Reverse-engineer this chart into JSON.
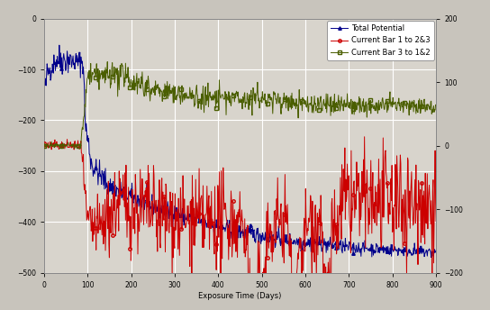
{
  "title": "",
  "xlabel": "Exposure Time (Days)",
  "xlim": [
    0,
    900
  ],
  "ylim_left": [
    -500,
    0
  ],
  "ylim_right": [
    -200,
    200
  ],
  "xticks": [
    0,
    100,
    200,
    300,
    400,
    500,
    600,
    700,
    800,
    900
  ],
  "yticks_left": [
    0,
    -100,
    -200,
    -300,
    -400,
    -500
  ],
  "yticks_right": [
    -200,
    -100,
    0,
    100,
    200
  ],
  "legend_entries": [
    "Total Potential",
    "Current Bar 1 to 2&3",
    "Current Bar 3 to 1&2"
  ],
  "line_colors": [
    "#00008B",
    "#cc0000",
    "#4a5e00"
  ],
  "line_markers": [
    "^",
    "o",
    "s"
  ],
  "background_color": "#c8c4bc",
  "plot_bg_color": "#d8d4cc",
  "grid_color": "#ffffff",
  "seed": 42
}
